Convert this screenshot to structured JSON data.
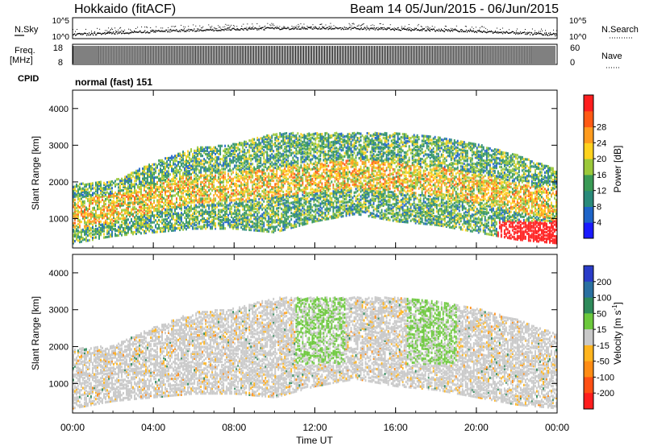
{
  "header": {
    "station": "Hokkaido (fitACF)",
    "beam_and_dates": "Beam 14  05/Jun/2015 - 06/Jun/2015"
  },
  "strips": {
    "nsky_label": "N.Sky",
    "nsky_top": "10^5",
    "nsky_bottom": "10^0",
    "nsearch_label": "N.Search",
    "nsearch_top": "10^5",
    "nsearch_bottom": "10^0",
    "freq_label": "Freq.",
    "freq_unit": "[MHz]",
    "freq_top": "18",
    "freq_bottom": "8",
    "nave_label": "Nave",
    "nave_top": "60",
    "nave_bottom": "0",
    "cpid_label": "CPID",
    "cpid_value": "normal (fast) 151"
  },
  "chart_data": [
    {
      "type": "heatmap",
      "panel": "power",
      "ylabel": "Slant Range [km]",
      "xlabel": "",
      "ylim": [
        200,
        4500
      ],
      "yticks": [
        1000,
        2000,
        3000,
        4000
      ],
      "xlim": [
        0,
        24
      ],
      "xticks": [
        0,
        4,
        8,
        12,
        16,
        20,
        24
      ],
      "colorbar": {
        "label": "Power [dB]",
        "range": [
          0,
          32
        ],
        "ticks": [
          "4",
          "8",
          "12",
          "16",
          "20",
          "24",
          "28"
        ],
        "colors": [
          "#1a1aff",
          "#1e64c8",
          "#2a8a7a",
          "#3a9a55",
          "#9bc83a",
          "#ffd21e",
          "#ff9b1e",
          "#ff5a14",
          "#ff1e1e"
        ]
      },
      "echo_region": [
        {
          "hour": 0,
          "low": 300,
          "high": 1900
        },
        {
          "hour": 2,
          "low": 500,
          "high": 2000
        },
        {
          "hour": 4,
          "low": 600,
          "high": 2500
        },
        {
          "hour": 6,
          "low": 700,
          "high": 2900
        },
        {
          "hour": 8,
          "low": 700,
          "high": 3000
        },
        {
          "hour": 10,
          "low": 600,
          "high": 3300
        },
        {
          "hour": 12,
          "low": 900,
          "high": 3300
        },
        {
          "hour": 14,
          "low": 1100,
          "high": 3300
        },
        {
          "hour": 16,
          "low": 900,
          "high": 3300
        },
        {
          "hour": 18,
          "low": 800,
          "high": 3200
        },
        {
          "hour": 20,
          "low": 600,
          "high": 3000
        },
        {
          "hour": 22,
          "low": 400,
          "high": 2700
        },
        {
          "hour": 24,
          "low": 300,
          "high": 2300
        }
      ]
    },
    {
      "type": "heatmap",
      "panel": "velocity",
      "ylabel": "Slant Range [km]",
      "xlabel": "Time UT",
      "ylim": [
        200,
        4500
      ],
      "yticks": [
        1000,
        2000,
        3000,
        4000
      ],
      "xlim": [
        0,
        24
      ],
      "xticks": [
        0,
        4,
        8,
        12,
        16,
        20,
        24
      ],
      "xtick_labels": [
        "00:00",
        "04:00",
        "08:00",
        "12:00",
        "16:00",
        "20:00",
        "00:00"
      ],
      "colorbar": {
        "label": "Velocity [m s^-1]",
        "ticks": [
          "200",
          "100",
          "50",
          "15",
          "-15",
          "-50",
          "-100",
          "-200"
        ],
        "colors": [
          "#2a3cc8",
          "#2a70a0",
          "#2e8a5a",
          "#6cc83c",
          "#c8c8c8",
          "#ffb41e",
          "#ff8c14",
          "#ff5014",
          "#ff1e1e"
        ]
      },
      "echo_region": [
        {
          "hour": 0,
          "low": 300,
          "high": 1900
        },
        {
          "hour": 2,
          "low": 500,
          "high": 2000
        },
        {
          "hour": 4,
          "low": 600,
          "high": 2500
        },
        {
          "hour": 6,
          "low": 700,
          "high": 2900
        },
        {
          "hour": 8,
          "low": 700,
          "high": 3000
        },
        {
          "hour": 10,
          "low": 600,
          "high": 3300
        },
        {
          "hour": 12,
          "low": 900,
          "high": 3300
        },
        {
          "hour": 14,
          "low": 1100,
          "high": 3300
        },
        {
          "hour": 16,
          "low": 900,
          "high": 3300
        },
        {
          "hour": 18,
          "low": 800,
          "high": 3200
        },
        {
          "hour": 20,
          "low": 600,
          "high": 3000
        },
        {
          "hour": 22,
          "low": 400,
          "high": 2700
        },
        {
          "hour": 24,
          "low": 300,
          "high": 2300
        }
      ]
    }
  ]
}
